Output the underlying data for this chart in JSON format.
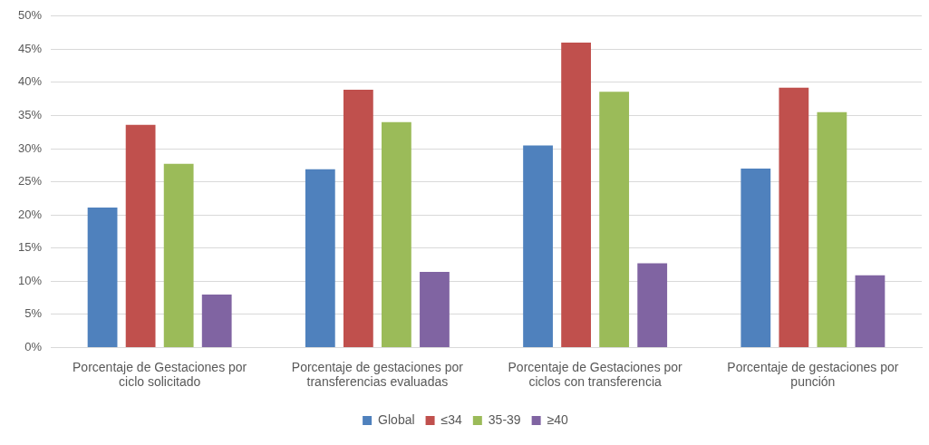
{
  "chart_data": {
    "type": "bar",
    "categories": [
      "Porcentaje de Gestaciones por ciclo solicitado",
      "Porcentaje de gestaciones por transferencias evaluadas",
      "Porcentaje de Gestaciones por ciclos con transferencia",
      "Porcentaje de gestaciones por punción"
    ],
    "series": [
      {
        "name": "Global",
        "color": "#4f81bd",
        "values": [
          21.1,
          26.9,
          30.5,
          27.0
        ]
      },
      {
        "name": "≤34",
        "color": "#c0504d",
        "values": [
          33.6,
          38.9,
          46.0,
          39.2
        ]
      },
      {
        "name": "35-39",
        "color": "#9bbb59",
        "values": [
          27.7,
          34.0,
          38.6,
          35.5
        ]
      },
      {
        "name": "≥40",
        "color": "#8064a2",
        "values": [
          8.0,
          11.4,
          12.7,
          10.9
        ]
      }
    ],
    "ylim": [
      0,
      50
    ],
    "yticks": [
      {
        "value": 0,
        "label": "0%"
      },
      {
        "value": 5,
        "label": "5%"
      },
      {
        "value": 10,
        "label": "10%"
      },
      {
        "value": 15,
        "label": "15%"
      },
      {
        "value": 20,
        "label": "20%"
      },
      {
        "value": 25,
        "label": "25%"
      },
      {
        "value": 30,
        "label": "30%"
      },
      {
        "value": 35,
        "label": "35%"
      },
      {
        "value": 40,
        "label": "40%"
      },
      {
        "value": 45,
        "label": "45%"
      },
      {
        "value": 50,
        "label": "50%"
      }
    ],
    "grid": "y",
    "legend": "bottom"
  }
}
